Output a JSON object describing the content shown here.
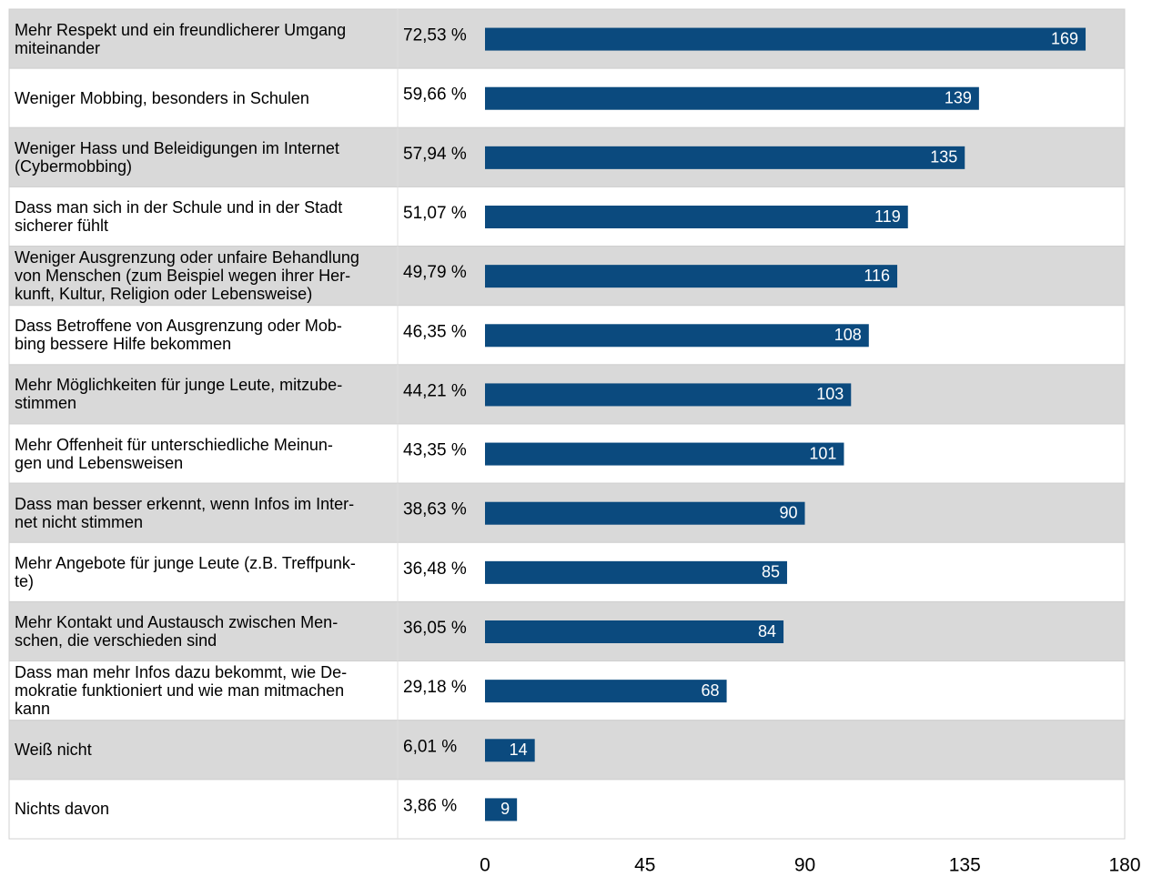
{
  "chart_data": {
    "type": "bar",
    "orientation": "horizontal",
    "categories": [
      "Mehr Respekt und ein freundlicherer Umgang\nmiteinander",
      "Weniger Mobbing, besonders in Schulen",
      "Weniger Hass und Beleidigungen im Internet\n(Cybermobbing)",
      "Dass man sich in der Schule und in der Stadt\nsicherer fühlt",
      "Weniger Ausgrenzung oder unfaire Behandlung\nvon Menschen (zum Beispiel wegen ihrer Her-\nkunft, Kultur, Religion oder Lebensweise)",
      "Dass Betroffene von Ausgrenzung oder Mob-\nbing bessere Hilfe bekommen",
      "Mehr Möglichkeiten für junge Leute, mitzube-\nstimmen",
      "Mehr Offenheit für unterschiedliche Meinun-\ngen und Lebensweisen",
      "Dass man besser erkennt, wenn Infos im Inter-\nnet nicht stimmen",
      "Mehr Angebote für junge Leute (z.B. Treffpunk-\nte)",
      "Mehr Kontakt und Austausch zwischen Men-\nschen, die verschieden sind",
      "Dass man mehr Infos dazu bekommt, wie De-\nmokratie funktioniert und wie man mitmachen\nkann",
      "Weiß nicht",
      "Nichts davon"
    ],
    "shares": [
      "72,53 %",
      "59,66 %",
      "57,94 %",
      "51,07 %",
      "49,79 %",
      "46,35 %",
      "44,21 %",
      "43,35 %",
      "38,63 %",
      "36,48 %",
      "36,05 %",
      "29,18 %",
      "6,01 %",
      "3,86 %"
    ],
    "values": [
      169,
      139,
      135,
      119,
      116,
      108,
      103,
      101,
      90,
      85,
      84,
      68,
      14,
      9
    ],
    "color": "#0b4a7e",
    "row_color": "#d9d9d9",
    "xlim": [
      0,
      180
    ],
    "xticks": [
      0,
      45,
      90,
      135,
      180
    ]
  }
}
